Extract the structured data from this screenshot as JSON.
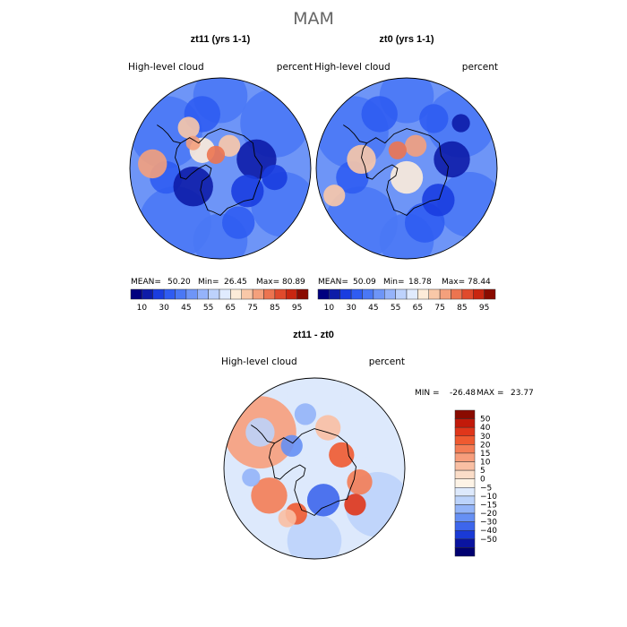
{
  "page_title": "MAM",
  "chart_data": [
    {
      "type": "heatmap",
      "projection": "south-polar stereographic",
      "title": "zt11 (yrs 1-1)",
      "left_label": "High-level cloud",
      "right_label": "percent",
      "stats": {
        "mean_label": "MEAN=",
        "mean": "50.20",
        "min_label": "Min=",
        "min": "26.45",
        "max_label": "Max=",
        "max": "80.89"
      },
      "colorbar": {
        "levels": [
          10,
          20,
          30,
          40,
          45,
          50,
          55,
          60,
          65,
          70,
          75,
          80,
          85,
          90,
          95
        ],
        "tick_labels": [
          "10",
          "30",
          "45",
          "55",
          "65",
          "75",
          "85",
          "95"
        ],
        "colors": [
          "#00007f",
          "#0d1ca8",
          "#1a3de0",
          "#2f5cf2",
          "#4a78f5",
          "#6e95f7",
          "#95b3fa",
          "#bdd2fc",
          "#e0ebfe",
          "#fdecd9",
          "#f9c8a8",
          "#f4a07c",
          "#ec7450",
          "#e04a2c",
          "#c92610",
          "#8a0b00"
        ]
      }
    },
    {
      "type": "heatmap",
      "projection": "south-polar stereographic",
      "title": "zt0 (yrs 1-1)",
      "left_label": "High-level cloud",
      "right_label": "percent",
      "stats": {
        "mean_label": "MEAN=",
        "mean": "50.09",
        "min_label": "Min=",
        "min": "18.78",
        "max_label": "Max=",
        "max": "78.44"
      },
      "colorbar": {
        "levels": [
          10,
          20,
          30,
          40,
          45,
          50,
          55,
          60,
          65,
          70,
          75,
          80,
          85,
          90,
          95
        ],
        "tick_labels": [
          "10",
          "30",
          "45",
          "55",
          "65",
          "75",
          "85",
          "95"
        ],
        "colors": [
          "#00007f",
          "#0d1ca8",
          "#1a3de0",
          "#2f5cf2",
          "#4a78f5",
          "#6e95f7",
          "#95b3fa",
          "#bdd2fc",
          "#e0ebfe",
          "#fdecd9",
          "#f9c8a8",
          "#f4a07c",
          "#ec7450",
          "#e04a2c",
          "#c92610",
          "#8a0b00"
        ]
      }
    },
    {
      "type": "heatmap",
      "projection": "south-polar stereographic",
      "title": "zt11 - zt0",
      "left_label": "High-level cloud",
      "right_label": "percent",
      "stats": {
        "min_label": "MIN =",
        "min": "-26.48",
        "max_label": "MAX =",
        "max": "23.77"
      },
      "colorbar": {
        "levels": [
          50,
          40,
          30,
          20,
          15,
          10,
          5,
          0,
          -5,
          -10,
          -15,
          -20,
          -30,
          -40,
          -50
        ],
        "tick_labels": [
          "50",
          "40",
          "30",
          "20",
          "15",
          "10",
          "5",
          "0",
          "−5",
          "−10",
          "−15",
          "−20",
          "−30",
          "−40",
          "−50"
        ],
        "colors": [
          "#8a0b00",
          "#c21a0a",
          "#e0361a",
          "#ef5a30",
          "#f47d55",
          "#f79e7c",
          "#f9bfa3",
          "#fbddc8",
          "#fdf3e6",
          "#dde9fc",
          "#bcd3fb",
          "#93b4f8",
          "#6690f4",
          "#3d66ec",
          "#1a3ad6",
          "#0a14a0",
          "#000070"
        ]
      }
    }
  ]
}
